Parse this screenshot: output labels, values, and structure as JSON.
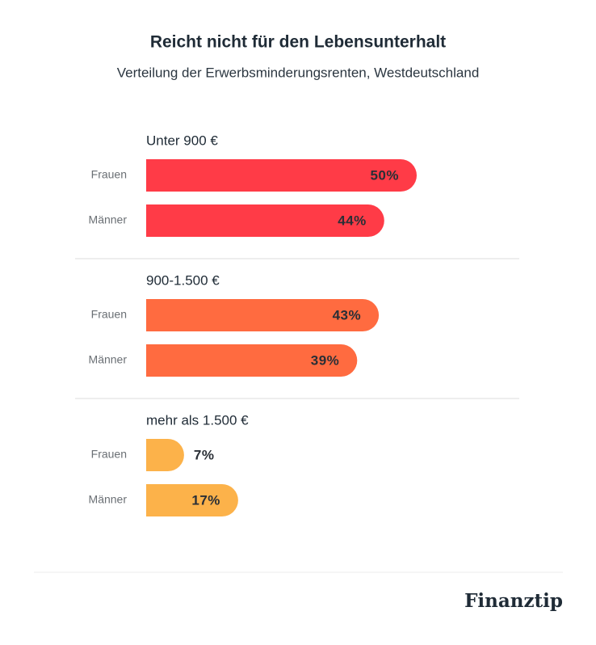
{
  "chart_data": {
    "type": "bar",
    "title": "Reicht nicht für den Lebensunterhalt",
    "subtitle": "Verteilung der Erwerbsminderungsrenten, Westdeutschland",
    "groups": [
      {
        "name": "Unter 900 €",
        "color": "#ff3b47",
        "categories": [
          "Frauen",
          "Männer"
        ],
        "values": [
          50,
          44
        ],
        "value_labels": [
          "50%",
          "44%"
        ]
      },
      {
        "name": "900-1.500 €",
        "color": "#ff6b40",
        "categories": [
          "Frauen",
          "Männer"
        ],
        "values": [
          43,
          39
        ],
        "value_labels": [
          "43%",
          "39%"
        ]
      },
      {
        "name": "mehr als 1.500 €",
        "color": "#fcb24a",
        "categories": [
          "Frauen",
          "Männer"
        ],
        "values": [
          7,
          17
        ],
        "value_labels": [
          "7%",
          "17%"
        ]
      }
    ],
    "brand": "Finanztip"
  }
}
